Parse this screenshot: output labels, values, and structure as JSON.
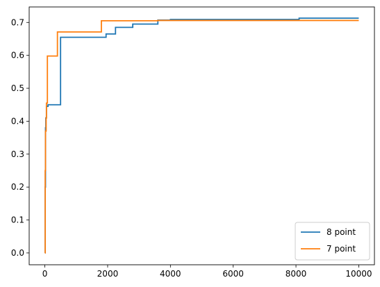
{
  "chart_data": {
    "type": "line",
    "step": true,
    "xlim": [
      -500,
      10500
    ],
    "ylim": [
      -0.036,
      0.747
    ],
    "xticks": [
      0,
      2000,
      4000,
      6000,
      8000,
      10000
    ],
    "xtick_labels": [
      "0",
      "2000",
      "4000",
      "6000",
      "8000",
      "10000"
    ],
    "yticks": [
      0.0,
      0.1,
      0.2,
      0.3,
      0.4,
      0.5,
      0.6,
      0.7
    ],
    "ytick_labels": [
      "0.0",
      "0.1",
      "0.2",
      "0.3",
      "0.4",
      "0.5",
      "0.6",
      "0.7"
    ],
    "grid": false,
    "legend": "lower-right",
    "series": [
      {
        "name": "8 point",
        "color": "#1f77b4",
        "x": [
          0,
          10,
          20,
          30,
          50,
          100,
          500,
          1950,
          2250,
          2800,
          3600,
          4000,
          8100,
          10000
        ],
        "y": [
          0.0,
          0.2,
          0.38,
          0.41,
          0.445,
          0.45,
          0.655,
          0.665,
          0.685,
          0.695,
          0.707,
          0.709,
          0.713,
          0.713
        ]
      },
      {
        "name": "7 point",
        "color": "#ff7f0e",
        "x": [
          0,
          10,
          20,
          40,
          50,
          80,
          400,
          1800,
          3600,
          10000
        ],
        "y": [
          0.0,
          0.25,
          0.37,
          0.41,
          0.455,
          0.598,
          0.671,
          0.705,
          0.706,
          0.706
        ]
      }
    ]
  }
}
